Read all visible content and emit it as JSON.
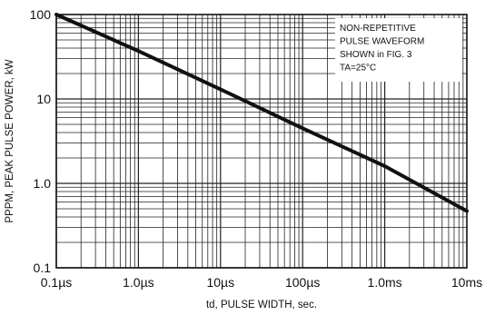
{
  "chart_data": {
    "type": "line",
    "title": "",
    "xlabel": "td, PULSE WIDTH, sec.",
    "ylabel": "PPPM, PEAK PULSE POWER, kW",
    "x_scale": "log",
    "y_scale": "log",
    "x_unit": "seconds",
    "xlim": [
      1e-07,
      0.01
    ],
    "ylim": [
      0.1,
      100
    ],
    "x_ticks": [
      {
        "value": 1e-07,
        "label": "0.1µs"
      },
      {
        "value": 1e-06,
        "label": "1.0µs"
      },
      {
        "value": 1e-05,
        "label": "10µs"
      },
      {
        "value": 0.0001,
        "label": "100µs"
      },
      {
        "value": 0.001,
        "label": "1.0ms"
      },
      {
        "value": 0.01,
        "label": "10ms"
      }
    ],
    "y_ticks": [
      {
        "value": 100,
        "label": "100"
      },
      {
        "value": 10,
        "label": "10"
      },
      {
        "value": 1,
        "label": "1.0"
      },
      {
        "value": 0.1,
        "label": "0.1"
      }
    ],
    "grid": true,
    "series": [
      {
        "x": [
          1e-07,
          1e-06,
          1e-05,
          0.0001,
          0.001,
          0.01
        ],
        "y": [
          100,
          37,
          13,
          4.5,
          1.6,
          0.47
        ]
      }
    ],
    "annotation": {
      "lines": [
        "NON-REPETITIVE",
        "PULSE WAVEFORM",
        "SHOWN in FIG. 3",
        "TA=25°C"
      ],
      "placement": "top-right"
    }
  }
}
